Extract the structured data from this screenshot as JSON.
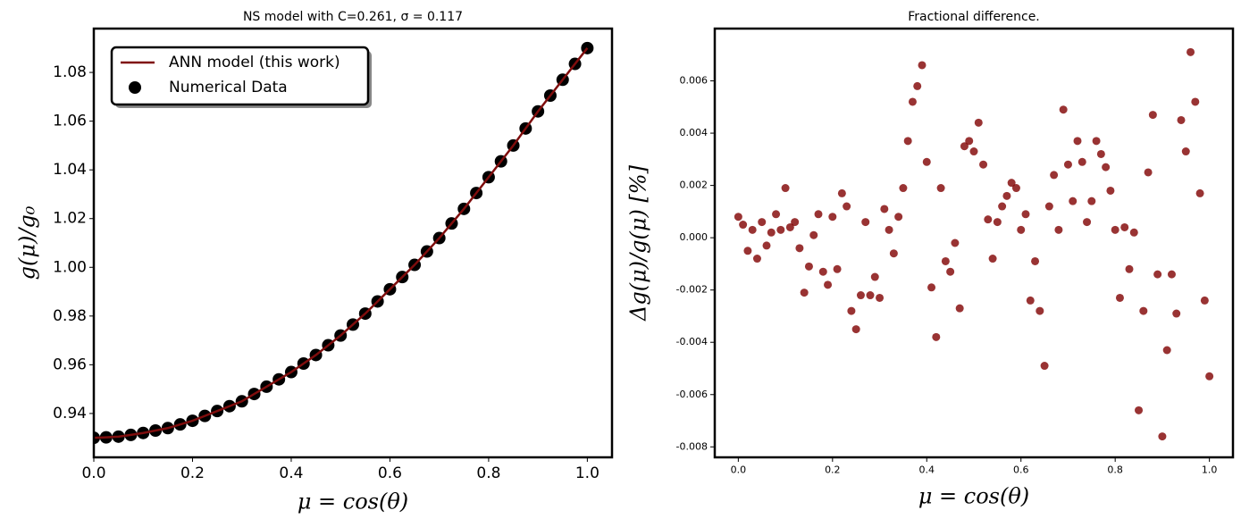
{
  "chart_data": [
    {
      "type": "line",
      "title": "NS model with C=0.261, σ = 0.117",
      "x_label": "μ = cos(θ)",
      "y_label": "g(μ)/g₀",
      "legend": "upper left",
      "xlim": [
        0,
        1.05
      ],
      "ylim": [
        0.922,
        1.098
      ],
      "xticks": [
        {
          "value": 0,
          "label": "0.0"
        },
        0.2,
        0.4,
        0.6,
        0.8,
        {
          "value": 1,
          "label": "1.0"
        }
      ],
      "yticks": [
        0.94,
        0.96,
        0.98,
        {
          "value": 1,
          "label": "1.00"
        },
        1.02,
        1.04,
        1.06,
        1.08
      ],
      "x": [
        0,
        0.025,
        0.05,
        0.075,
        0.1,
        0.125,
        0.15,
        0.175,
        0.2,
        0.225,
        0.25,
        0.275,
        0.3,
        0.325,
        0.35,
        0.375,
        0.4,
        0.425,
        0.45,
        0.475,
        0.5,
        0.525,
        0.55,
        0.575,
        0.6,
        0.625,
        0.65,
        0.675,
        0.7,
        0.725,
        0.75,
        0.775,
        0.8,
        0.825,
        0.85,
        0.875,
        0.9,
        0.925,
        0.95,
        0.975,
        1
      ],
      "series": [
        {
          "name": "Numerical Data",
          "type": "scatter",
          "color": "#000000",
          "values": [
            0.93,
            0.9302,
            0.9305,
            0.9312,
            0.932,
            0.933,
            0.934,
            0.9355,
            0.937,
            0.939,
            0.941,
            0.943,
            0.945,
            0.948,
            0.951,
            0.954,
            0.957,
            0.9605,
            0.964,
            0.968,
            0.972,
            0.9765,
            0.981,
            0.986,
            0.991,
            0.996,
            1.001,
            1.0065,
            1.012,
            1.018,
            1.024,
            1.0305,
            1.037,
            1.0435,
            1.05,
            1.057,
            1.064,
            1.0705,
            1.077,
            1.0835,
            1.09
          ]
        },
        {
          "name": "ANN model (this work)",
          "type": "line",
          "color": "#7f0d0d",
          "values": [
            0.93,
            0.9302,
            0.9305,
            0.9312,
            0.932,
            0.933,
            0.934,
            0.9355,
            0.937,
            0.939,
            0.941,
            0.943,
            0.945,
            0.948,
            0.951,
            0.954,
            0.957,
            0.9605,
            0.964,
            0.968,
            0.972,
            0.9765,
            0.981,
            0.986,
            0.991,
            0.996,
            1.001,
            1.0065,
            1.012,
            1.018,
            1.024,
            1.0305,
            1.037,
            1.0435,
            1.05,
            1.057,
            1.064,
            1.0705,
            1.077,
            1.0835,
            1.09
          ]
        }
      ]
    },
    {
      "type": "scatter",
      "title": "Fractional difference.",
      "x_label": "μ = cos(θ)",
      "y_label": "Δg(μ)/g(μ)  [%]",
      "color": "#800000",
      "xlim": [
        -0.05,
        1.05
      ],
      "ylim": [
        -0.0084,
        0.008
      ],
      "xticks": [
        {
          "value": 0,
          "label": "0.0"
        },
        0.2,
        0.4,
        0.6,
        0.8,
        {
          "value": 1,
          "label": "1.0"
        }
      ],
      "yticks": [
        -0.008,
        -0.006,
        -0.004,
        -0.002,
        {
          "value": 0,
          "label": "0.000"
        },
        0.002,
        0.004,
        0.006
      ],
      "x": [
        0,
        0.01,
        0.02,
        0.03,
        0.04,
        0.05,
        0.06,
        0.07,
        0.08,
        0.09,
        0.1,
        0.11,
        0.12,
        0.13,
        0.14,
        0.15,
        0.16,
        0.17,
        0.18,
        0.19,
        0.2,
        0.21,
        0.22,
        0.23,
        0.24,
        0.25,
        0.26,
        0.27,
        0.28,
        0.29,
        0.3,
        0.31,
        0.32,
        0.33,
        0.34,
        0.35,
        0.36,
        0.37,
        0.38,
        0.39,
        0.4,
        0.41,
        0.42,
        0.43,
        0.44,
        0.45,
        0.46,
        0.47,
        0.48,
        0.49,
        0.5,
        0.51,
        0.52,
        0.53,
        0.54,
        0.55,
        0.56,
        0.57,
        0.58,
        0.59,
        0.6,
        0.61,
        0.62,
        0.63,
        0.64,
        0.65,
        0.66,
        0.67,
        0.68,
        0.69,
        0.7,
        0.71,
        0.72,
        0.73,
        0.74,
        0.75,
        0.76,
        0.77,
        0.78,
        0.79,
        0.8,
        0.81,
        0.82,
        0.83,
        0.84,
        0.85,
        0.86,
        0.87,
        0.88,
        0.89,
        0.9,
        0.91,
        0.92,
        0.93,
        0.94,
        0.95,
        0.96,
        0.97,
        0.98,
        0.99,
        1
      ],
      "values": [
        0.0008,
        0.0005,
        -0.0005,
        0.0003,
        -0.0008,
        0.0006,
        -0.0003,
        0.0002,
        0.0009,
        0.0003,
        0.0019,
        0.0004,
        0.0006,
        -0.0004,
        -0.0021,
        -0.0011,
        0.0001,
        0.0009,
        -0.0013,
        -0.0018,
        0.0008,
        -0.0012,
        0.0017,
        0.0012,
        -0.0028,
        -0.0035,
        -0.0022,
        0.0006,
        -0.0022,
        -0.0015,
        -0.0023,
        0.0011,
        0.0003,
        -0.0006,
        0.0008,
        0.0019,
        0.0037,
        0.0052,
        0.0058,
        0.0066,
        0.0029,
        -0.0019,
        -0.0038,
        0.0019,
        -0.0009,
        -0.0013,
        -0.0002,
        -0.0027,
        0.0035,
        0.0037,
        0.0033,
        0.0044,
        0.0028,
        0.0007,
        -0.0008,
        0.0006,
        0.0012,
        0.0016,
        0.0021,
        0.0019,
        0.0003,
        0.0009,
        -0.0024,
        -0.0009,
        -0.0028,
        -0.0049,
        0.0012,
        0.0024,
        0.0003,
        0.0049,
        0.0028,
        0.0014,
        0.0037,
        0.0029,
        0.0006,
        0.0014,
        0.0037,
        0.0032,
        0.0027,
        0.0018,
        0.0003,
        -0.0023,
        0.0004,
        -0.0012,
        0.0002,
        -0.0066,
        -0.0028,
        0.0025,
        0.0047,
        -0.0014,
        -0.0076,
        -0.0043,
        -0.0014,
        -0.0029,
        0.0045,
        0.0033,
        0.0071,
        0.0052,
        0.0017,
        -0.0024,
        -0.0053
      ]
    }
  ]
}
